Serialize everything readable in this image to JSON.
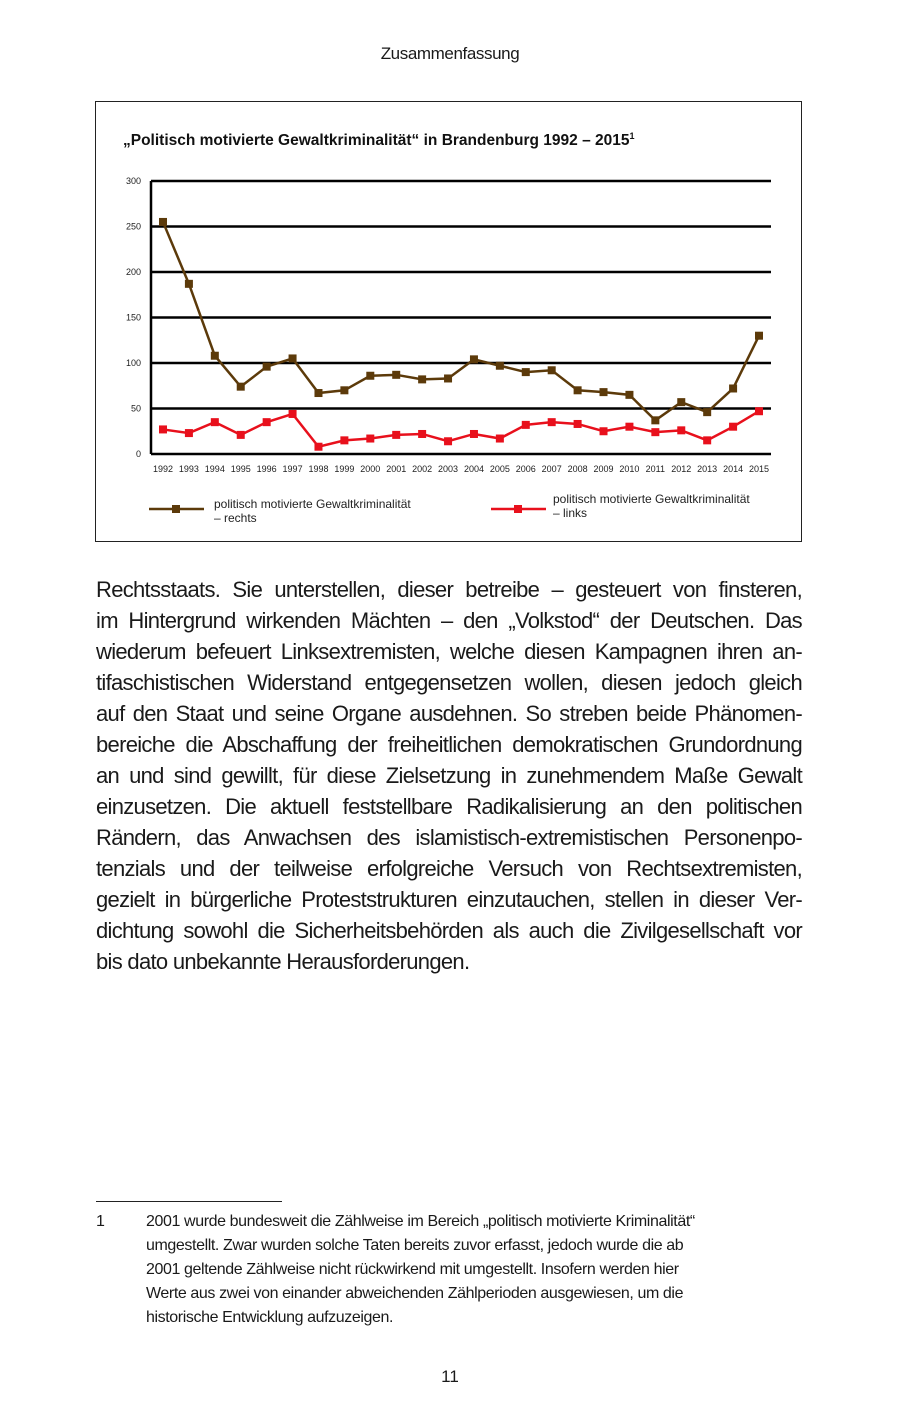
{
  "header": "Zusammenfassung",
  "chart_data": {
    "type": "line",
    "title": "„Politisch motivierte Gewaltkriminalität“ in Brandenburg 1992 – 2015",
    "title_superscript": "1",
    "categories": [
      "1992",
      "1993",
      "1994",
      "1995",
      "1996",
      "1997",
      "1998",
      "1999",
      "2000",
      "2001",
      "2002",
      "2003",
      "2004",
      "2005",
      "2006",
      "2007",
      "2008",
      "2009",
      "2010",
      "2011",
      "2012",
      "2013",
      "2014",
      "2015"
    ],
    "ylim": [
      0,
      300
    ],
    "yticks": [
      "0",
      "50",
      "100",
      "150",
      "200",
      "250",
      "300"
    ],
    "grid": true,
    "legend_position": "bottom",
    "series": [
      {
        "name": "politisch motivierte Gewaltkriminalität – rechts",
        "legend_lines": [
          "politisch motivierte Gewaltkriminalität",
          "– rechts"
        ],
        "color": "#5c3a0a",
        "values": [
          255,
          187,
          108,
          74,
          96,
          105,
          67,
          70,
          86,
          87,
          82,
          83,
          104,
          97,
          90,
          92,
          70,
          68,
          65,
          37,
          57,
          46,
          72,
          130
        ]
      },
      {
        "name": "politisch motivierte Gewaltkriminalität – links",
        "legend_lines": [
          "politisch motivierte Gewaltkriminalität",
          "– links"
        ],
        "color": "#e8101c",
        "values": [
          27,
          23,
          35,
          21,
          35,
          44,
          8,
          15,
          17,
          21,
          22,
          14,
          22,
          17,
          32,
          35,
          33,
          25,
          30,
          24,
          26,
          15,
          30,
          47
        ]
      }
    ]
  },
  "body_lines": [
    "Rechtsstaats. Sie unterstellen, dieser betreibe – gesteuert von finsteren,",
    "im Hintergrund wirkenden Mächten – den „Volkstod“ der Deutschen. Das",
    "wiederum befeuert Linksextremisten, welche diesen Kampagnen ihren an-",
    "tifaschistischen Widerstand entgegensetzen wollen, diesen jedoch gleich",
    "auf den Staat und seine Organe ausdehnen. So streben beide Phänomen-",
    "bereiche die Abschaffung der freiheitlichen demokratischen Grundordnung",
    "an und sind gewillt, für diese Zielsetzung in zunehmendem Maße Gewalt",
    "einzusetzen. Die aktuell feststellbare Radikalisierung an den politischen",
    "Rändern, das Anwachsen des islamistisch-extremistischen Personenpo-",
    "tenzials und der teilweise erfolgreiche Versuch von Rechtsextremisten,",
    "gezielt in bürgerliche Proteststrukturen einzutauchen, stellen in dieser Ver-",
    "dichtung sowohl die Sicherheitsbehörden als auch die Zivilgesellschaft vor",
    "bis dato unbekannte Herausforderungen."
  ],
  "footnote": {
    "number": "1",
    "lines": [
      "2001 wurde bundesweit die Zählweise im Bereich „politisch motivierte Kriminalität“",
      "umgestellt. Zwar wurden solche Taten bereits zuvor erfasst, jedoch wurde die ab",
      "2001 geltende Zählweise nicht rückwirkend mit umgestellt. Insofern werden hier",
      "Werte aus zwei von einander abweichenden Zählperioden ausgewiesen, um die",
      "historische Entwicklung aufzuzeigen."
    ]
  },
  "page_number": "11"
}
